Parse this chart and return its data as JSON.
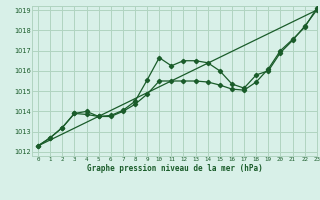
{
  "title": "Graphe pression niveau de la mer (hPa)",
  "bg_color": "#d8f0e8",
  "grid_color": "#b0d4c0",
  "line_color": "#1a5c2a",
  "xlim": [
    -0.5,
    23
  ],
  "ylim": [
    1011.8,
    1019.2
  ],
  "xticks": [
    0,
    1,
    2,
    3,
    4,
    5,
    6,
    7,
    8,
    9,
    10,
    11,
    12,
    13,
    14,
    15,
    16,
    17,
    18,
    19,
    20,
    21,
    22,
    23
  ],
  "yticks": [
    1012,
    1013,
    1014,
    1015,
    1016,
    1017,
    1018,
    1019
  ],
  "line_straight": {
    "x": [
      0,
      23
    ],
    "y": [
      1012.3,
      1019.0
    ]
  },
  "line2": {
    "x": [
      0,
      1,
      2,
      3,
      4,
      5,
      6,
      7,
      8,
      9,
      10,
      11,
      12,
      13,
      14,
      15,
      16,
      17,
      18,
      19,
      20,
      21,
      22,
      23
    ],
    "y": [
      1012.3,
      1012.7,
      1013.2,
      1013.9,
      1013.85,
      1013.75,
      1013.8,
      1014.05,
      1014.5,
      1015.55,
      1016.65,
      1016.25,
      1016.5,
      1016.5,
      1016.4,
      1016.0,
      1015.35,
      1015.15,
      1015.8,
      1016.0,
      1016.9,
      1017.5,
      1018.2,
      1019.0
    ]
  },
  "line3": {
    "x": [
      0,
      1,
      2,
      3,
      4,
      5,
      6,
      7,
      8,
      9,
      10,
      11,
      12,
      13,
      14,
      15,
      16,
      17,
      18,
      19,
      20,
      21,
      22,
      23
    ],
    "y": [
      1012.3,
      1012.7,
      1013.2,
      1013.9,
      1014.0,
      1013.75,
      1013.75,
      1014.0,
      1014.35,
      1014.85,
      1015.5,
      1015.5,
      1015.5,
      1015.5,
      1015.45,
      1015.3,
      1015.1,
      1015.05,
      1015.45,
      1016.1,
      1017.0,
      1017.55,
      1018.15,
      1019.1
    ]
  }
}
